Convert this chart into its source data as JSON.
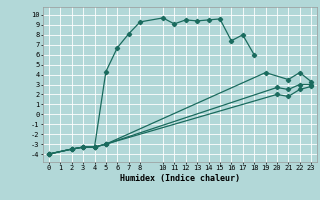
{
  "title": "",
  "xlabel": "Humidex (Indice chaleur)",
  "background_color": "#b2d8d8",
  "grid_color": "#ffffff",
  "line_color": "#1a6b5e",
  "xlim": [
    -0.5,
    23.5
  ],
  "ylim": [
    -4.8,
    10.8
  ],
  "xticks": [
    0,
    1,
    2,
    3,
    4,
    5,
    6,
    7,
    8,
    10,
    11,
    12,
    13,
    14,
    15,
    16,
    17,
    18,
    19,
    20,
    21,
    22,
    23
  ],
  "yticks": [
    -4,
    -3,
    -2,
    -1,
    0,
    1,
    2,
    3,
    4,
    5,
    6,
    7,
    8,
    9,
    10
  ],
  "series": [
    {
      "x": [
        0,
        2,
        3,
        4,
        5,
        6,
        7,
        8,
        10,
        11,
        12,
        13,
        14,
        15,
        16,
        17,
        18
      ],
      "y": [
        -4,
        -3.5,
        -3.3,
        -3.3,
        4.3,
        6.7,
        8.1,
        9.3,
        9.7,
        9.1,
        9.5,
        9.4,
        9.5,
        9.6,
        7.4,
        8.0,
        6.0
      ]
    },
    {
      "x": [
        0,
        2,
        3,
        4,
        5,
        19,
        21,
        22,
        23
      ],
      "y": [
        -4,
        -3.5,
        -3.3,
        -3.3,
        -3.0,
        4.2,
        3.5,
        4.2,
        3.3
      ]
    },
    {
      "x": [
        0,
        2,
        3,
        4,
        5,
        20,
        21,
        22,
        23
      ],
      "y": [
        -4,
        -3.5,
        -3.3,
        -3.3,
        -3.0,
        2.7,
        2.5,
        3.0,
        3.0
      ]
    },
    {
      "x": [
        0,
        2,
        3,
        4,
        5,
        20,
        21,
        22,
        23
      ],
      "y": [
        -4,
        -3.5,
        -3.3,
        -3.3,
        -3.0,
        2.0,
        1.8,
        2.5,
        2.8
      ]
    }
  ]
}
